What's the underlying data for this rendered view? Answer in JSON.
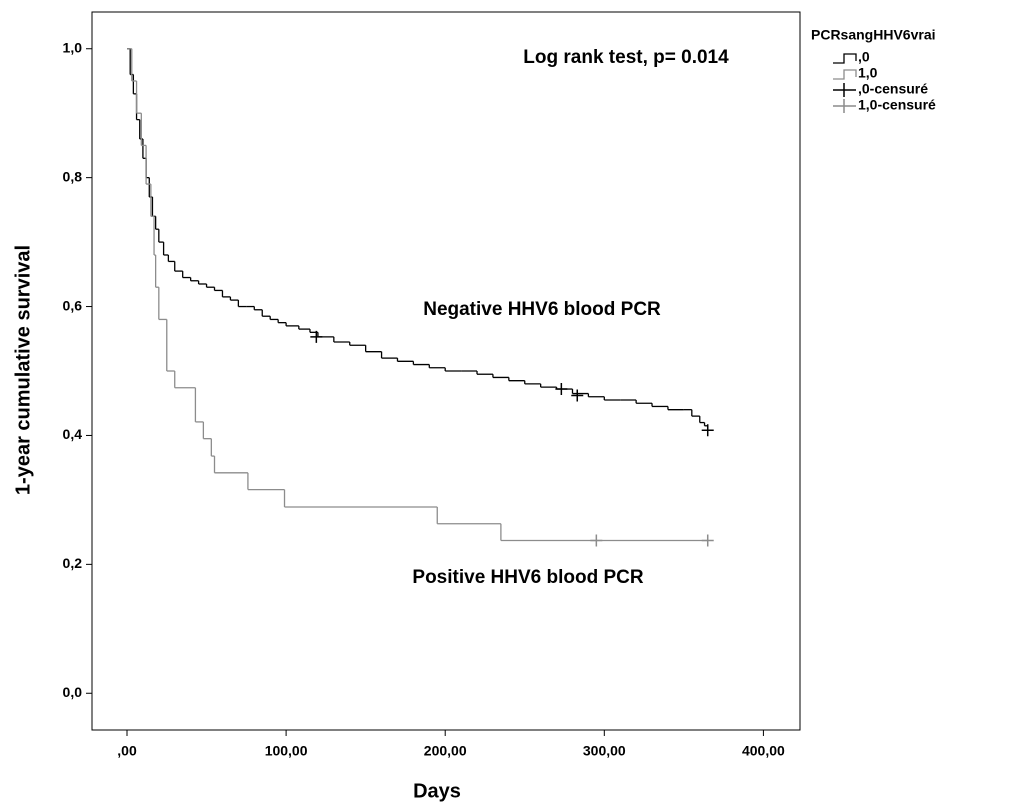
{
  "chart_data": {
    "type": "kaplan-meier",
    "annotations": [
      "Log rank test, p= 0.014",
      "Negative HHV6 blood PCR",
      "Positive HHV6 blood PCR"
    ],
    "x_label": "Days",
    "y_label": "1-year cumulative survival",
    "legend_title": "PCRsangHHV6vrai",
    "xlim": [
      -22,
      423
    ],
    "ylim": [
      -0.057,
      1.057
    ],
    "xticks": [
      {
        "value": 0,
        "label": ",00"
      },
      {
        "value": 100,
        "label": "100,00"
      },
      {
        "value": 200,
        "label": "200,00"
      },
      {
        "value": 300,
        "label": "300,00"
      },
      {
        "value": 400,
        "label": "400,00"
      }
    ],
    "yticks": [
      {
        "value": 0,
        "label": "0,0"
      },
      {
        "value": 0.2,
        "label": "0,2"
      },
      {
        "value": 0.4,
        "label": "0,4"
      },
      {
        "value": 0.6,
        "label": "0,6"
      },
      {
        "value": 0.8,
        "label": "0,8"
      },
      {
        "value": 1,
        "label": "1,0"
      }
    ],
    "series": [
      {
        "name": ",0",
        "style": "step",
        "color": "#000000",
        "x": [
          0,
          2,
          4,
          6,
          8,
          10,
          12,
          14,
          16,
          18,
          20,
          23,
          26,
          30,
          35,
          40,
          45,
          50,
          55,
          60,
          65,
          70,
          75,
          80,
          85,
          90,
          95,
          100,
          108,
          115,
          120,
          130,
          140,
          150,
          160,
          170,
          180,
          190,
          200,
          210,
          220,
          230,
          240,
          250,
          260,
          270,
          280,
          290,
          300,
          310,
          320,
          330,
          340,
          350,
          355,
          360,
          363,
          365
        ],
        "values": [
          1,
          0.96,
          0.93,
          0.89,
          0.86,
          0.83,
          0.8,
          0.77,
          0.74,
          0.72,
          0.7,
          0.68,
          0.67,
          0.655,
          0.645,
          0.64,
          0.635,
          0.63,
          0.625,
          0.615,
          0.61,
          0.6,
          0.6,
          0.595,
          0.585,
          0.58,
          0.575,
          0.57,
          0.565,
          0.56,
          0.553,
          0.545,
          0.54,
          0.53,
          0.52,
          0.515,
          0.51,
          0.505,
          0.5,
          0.5,
          0.495,
          0.49,
          0.485,
          0.48,
          0.475,
          0.472,
          0.465,
          0.46,
          0.455,
          0.455,
          0.45,
          0.445,
          0.44,
          0.44,
          0.43,
          0.42,
          0.415,
          0.41
        ]
      },
      {
        "name": "1,0",
        "style": "step",
        "color": "#8c8c8c",
        "x": [
          0,
          3,
          6,
          9,
          12,
          15,
          17,
          18,
          20,
          25,
          30,
          43,
          48,
          53,
          55,
          76,
          99,
          195,
          235,
          365
        ],
        "values": [
          1,
          0.95,
          0.9,
          0.85,
          0.79,
          0.74,
          0.68,
          0.63,
          0.58,
          0.5,
          0.474,
          0.421,
          0.395,
          0.368,
          0.342,
          0.316,
          0.289,
          0.263,
          0.237,
          0.237
        ]
      },
      {
        "name": ",0-censuré",
        "style": "censor",
        "color": "#000000",
        "x": [
          119,
          273,
          283,
          365
        ],
        "values": [
          0.553,
          0.472,
          0.462,
          0.408
        ]
      },
      {
        "name": "1,0-censuré",
        "style": "censor",
        "color": "#8c8c8c",
        "x": [
          295,
          365
        ],
        "values": [
          0.237,
          0.237
        ]
      }
    ]
  }
}
